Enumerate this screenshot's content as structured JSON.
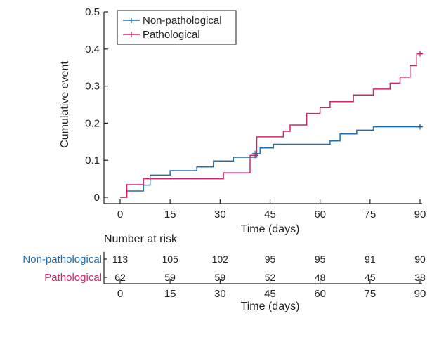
{
  "chart_data": {
    "type": "line",
    "subtype": "kaplan-meier cumulative event",
    "ylabel": "Cumulative event",
    "xlabel": "Time (days)",
    "xlim": [
      0,
      90
    ],
    "ylim": [
      0,
      0.5
    ],
    "x_ticks": [
      0,
      15,
      30,
      45,
      60,
      75,
      90
    ],
    "x_tick_labels": [
      "0",
      "15",
      "30",
      "45",
      "60",
      "75",
      "90"
    ],
    "y_ticks": [
      0,
      0.1,
      0.2,
      0.3,
      0.4,
      0.5
    ],
    "y_tick_labels": [
      "0",
      "0.1",
      "0.2",
      "0.3",
      "0.4",
      "0.5"
    ],
    "grid": false,
    "legend": {
      "placement": "top-left"
    },
    "series": [
      {
        "name": "Non-pathological",
        "color": "#1f6fb2",
        "steps": [
          [
            0,
            0
          ],
          [
            2,
            0.017
          ],
          [
            7,
            0.033
          ],
          [
            9,
            0.06
          ],
          [
            15,
            0.072
          ],
          [
            23,
            0.082
          ],
          [
            28,
            0.098
          ],
          [
            34,
            0.108
          ],
          [
            41,
            0.118
          ],
          [
            42,
            0.133
          ],
          [
            46,
            0.143
          ],
          [
            63,
            0.152
          ],
          [
            66,
            0.171
          ],
          [
            71,
            0.181
          ],
          [
            76,
            0.19
          ],
          [
            90,
            0.19
          ]
        ],
        "censored": [
          [
            40.5,
            0.118
          ],
          [
            90,
            0.19
          ]
        ]
      },
      {
        "name": "Pathological",
        "color": "#d6226e",
        "steps": [
          [
            0,
            0
          ],
          [
            2,
            0.034
          ],
          [
            7,
            0.05
          ],
          [
            31,
            0.066
          ],
          [
            39,
            0.113
          ],
          [
            41,
            0.163
          ],
          [
            49,
            0.178
          ],
          [
            51,
            0.195
          ],
          [
            56,
            0.226
          ],
          [
            60,
            0.242
          ],
          [
            63,
            0.258
          ],
          [
            70,
            0.276
          ],
          [
            76,
            0.292
          ],
          [
            81,
            0.308
          ],
          [
            84,
            0.324
          ],
          [
            87,
            0.355
          ],
          [
            89,
            0.387
          ],
          [
            90,
            0.387
          ]
        ],
        "censored": [
          [
            40.5,
            0.113
          ],
          [
            90,
            0.387
          ]
        ]
      }
    ],
    "risk_table": {
      "title": "Number at risk",
      "xlabel": "Time (days)",
      "times": [
        0,
        15,
        30,
        45,
        60,
        75,
        90
      ],
      "time_labels": [
        "0",
        "15",
        "30",
        "45",
        "60",
        "75",
        "90"
      ],
      "rows": [
        {
          "name": "Non-pathological",
          "color": "#1f6fb2",
          "values": [
            "113",
            "105",
            "102",
            "95",
            "95",
            "91",
            "90"
          ]
        },
        {
          "name": "Pathological",
          "color": "#d6226e",
          "values": [
            "62",
            "59",
            "59",
            "52",
            "48",
            "45",
            "38"
          ]
        }
      ]
    }
  }
}
